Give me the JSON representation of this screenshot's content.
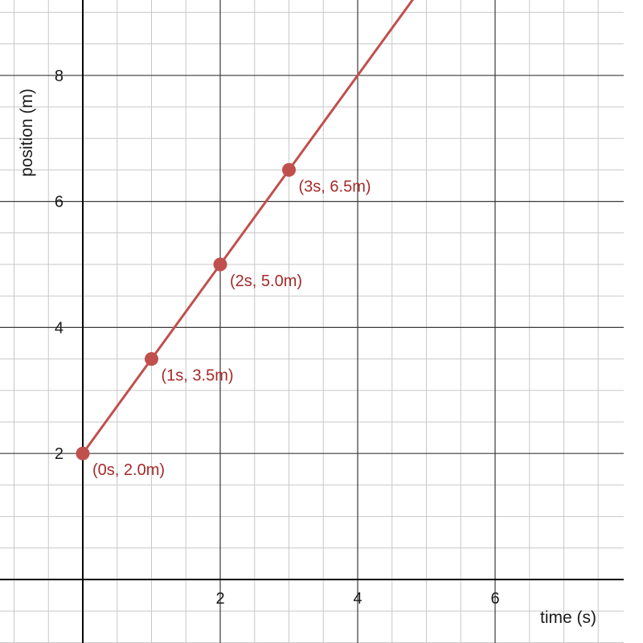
{
  "chart_data": {
    "type": "line",
    "xlabel": "time (s)",
    "ylabel": "position (m)",
    "xlim": [
      0,
      7.9
    ],
    "ylim": [
      0,
      9.6
    ],
    "x_ticks": [
      2,
      4,
      6
    ],
    "y_ticks": [
      2,
      4,
      6,
      8
    ],
    "minor_step": 0.5,
    "grid": true,
    "series": [
      {
        "color": "#c0504d",
        "line": {
          "x": [
            0,
            4.9
          ],
          "y": [
            2,
            9.35
          ]
        },
        "points": [
          {
            "x": 0,
            "y": 2.0,
            "label": "(0s, 2.0m)"
          },
          {
            "x": 1,
            "y": 3.5,
            "label": "(1s, 3.5m)"
          },
          {
            "x": 2,
            "y": 5.0,
            "label": "(2s, 5.0m)"
          },
          {
            "x": 3,
            "y": 6.5,
            "label": "(3s, 6.5m)"
          }
        ]
      }
    ],
    "colors": {
      "line": "#c0504d",
      "label": "#a52a2a",
      "major_grid": "#3a3a3a",
      "minor_grid": "#c8c8c8",
      "axis": "#000000"
    }
  }
}
